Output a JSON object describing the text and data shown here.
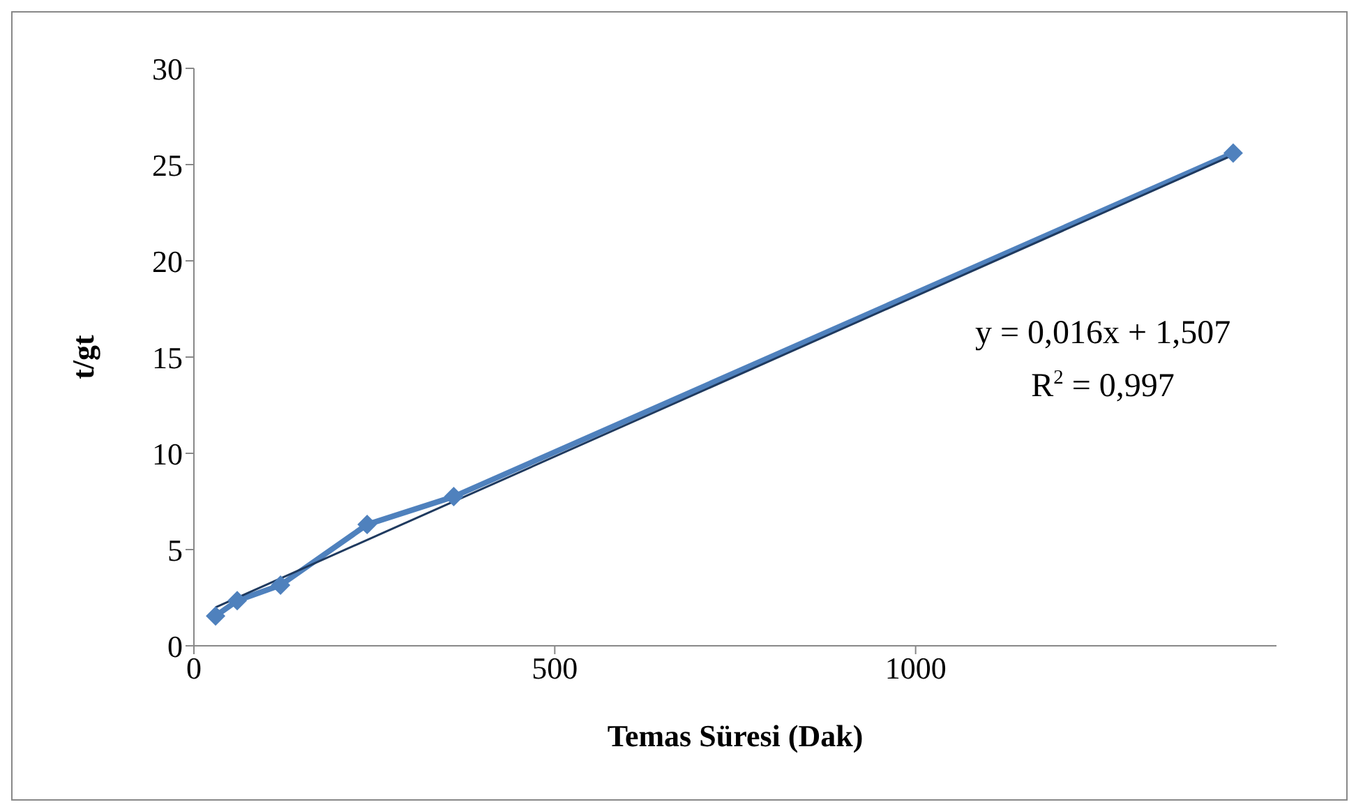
{
  "chart_data": {
    "type": "line",
    "xlabel": "Temas Süresi (Dak)",
    "ylabel": "t/gt",
    "xlim": [
      0,
      1500
    ],
    "xticks": [
      0,
      500,
      1000
    ],
    "ylim": [
      0,
      30
    ],
    "yticks": [
      0,
      5,
      10,
      15,
      20,
      25,
      30
    ],
    "series": [
      {
        "color": "#4f81bd",
        "marker": "diamond",
        "x": [
          30,
          60,
          120,
          240,
          360,
          1440
        ],
        "values": [
          1.55,
          2.35,
          3.15,
          6.3,
          7.75,
          25.6
        ]
      },
      {
        "color": "#1f3a5f",
        "marker": "none",
        "x": [
          30,
          1440
        ],
        "values": [
          2.0,
          25.5
        ]
      }
    ],
    "annotations": [
      "y = 0,016x + 1,507",
      "R$^{2}$ = 0,997"
    ]
  }
}
